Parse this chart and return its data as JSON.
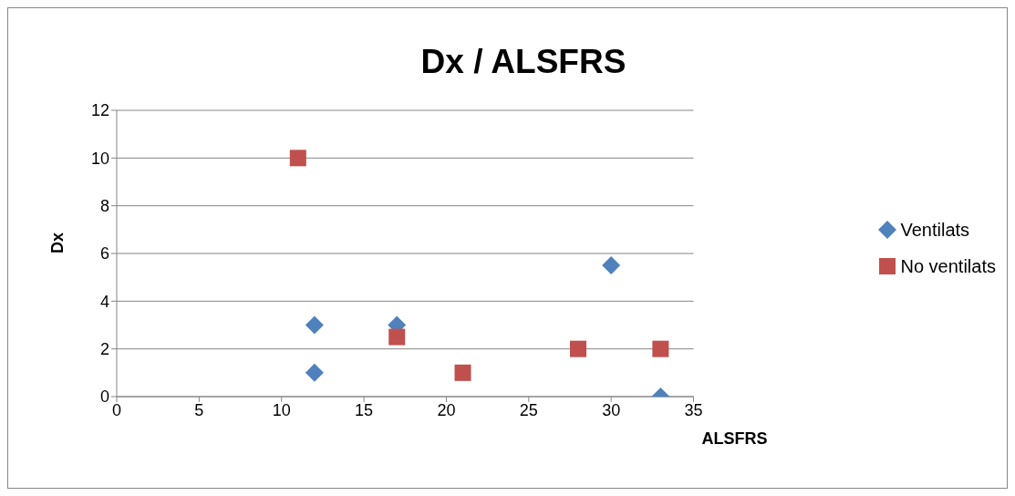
{
  "chart_data": {
    "type": "scatter",
    "title": "Dx / ALSFRS",
    "xlabel": "ALSFRS",
    "ylabel": "Dx",
    "xlim": [
      0,
      35
    ],
    "xticks": [
      0,
      5,
      10,
      15,
      20,
      25,
      30,
      35
    ],
    "ylim": [
      0,
      12
    ],
    "yticks": [
      0,
      2,
      4,
      6,
      8,
      10,
      12
    ],
    "grid": "y",
    "legend": "right",
    "series": [
      {
        "name": "Ventilats",
        "color": "#4f81bd",
        "marker": "diamond",
        "x": [
          12,
          12,
          17,
          30,
          33
        ],
        "values": [
          3,
          1,
          3,
          5.5,
          0
        ]
      },
      {
        "name": "No ventilats",
        "color": "#c0504d",
        "marker": "square",
        "x": [
          11,
          17,
          21,
          28,
          33
        ],
        "values": [
          10,
          2.5,
          1,
          2,
          2
        ]
      }
    ]
  }
}
